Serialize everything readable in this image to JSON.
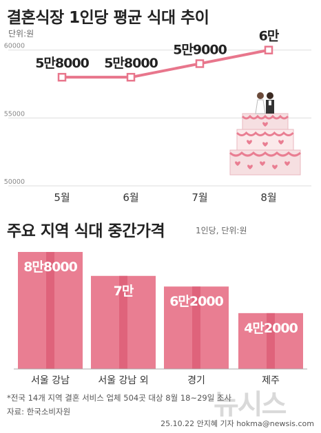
{
  "colors": {
    "line": "#e8768c",
    "bar": "#e97e92",
    "bar_stripe": "#dc5d76",
    "grid": "#dddddd"
  },
  "header": {
    "title": "결혼식장 1인당 평균 식대 추이",
    "unit": "단위:원"
  },
  "section2": {
    "title": "주요 지역 식대 중간가격",
    "unit": "1인당, 단위:원"
  },
  "footer": {
    "note": "*전국 14개 지역 결혼 서비스 업체 504곳 대상 8월 18~29일 조사",
    "source": "자료: 한국소비자원",
    "credit": "25.10.22 안지혜 기자 hokma@newsis.com",
    "watermark": "뉴시스"
  },
  "chart_data": [
    {
      "type": "line",
      "title": "결혼식장 1인당 평균 식대 추이",
      "unit": "단위:원",
      "categories": [
        "5월",
        "6월",
        "7월",
        "8월"
      ],
      "values": [
        58000,
        58000,
        59000,
        60000
      ],
      "data_labels": [
        "5만8000",
        "5만8000",
        "5만9000",
        "6만"
      ],
      "yticks": [
        "50000",
        "55000",
        "60000"
      ],
      "ylim": [
        50000,
        61000
      ],
      "grid": true,
      "illustration": "wedding-cake-icon"
    },
    {
      "type": "bar",
      "title": "주요 지역 식대 중간가격",
      "unit": "1인당, 단위:원",
      "categories": [
        "서울 강남",
        "서울 강남 외",
        "경기",
        "제주"
      ],
      "values": [
        88000,
        70000,
        62000,
        42000
      ],
      "data_labels": [
        "8만8000",
        "7만",
        "6만2000",
        "4만2000"
      ],
      "ylim": [
        0,
        100000
      ]
    }
  ]
}
